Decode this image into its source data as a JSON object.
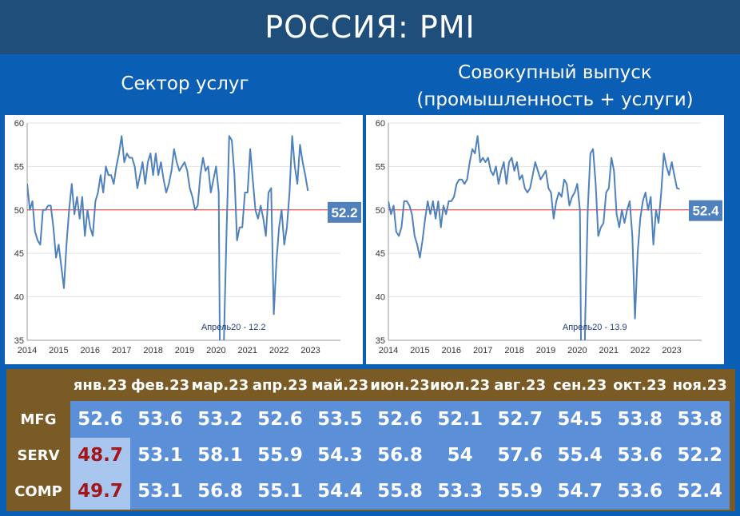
{
  "page": {
    "title": "РОССИЯ: PMI"
  },
  "subtitles": {
    "left": "Сектор услуг",
    "right_line1": "Совокупный выпуск",
    "right_line2": "(промышленность + услуги)"
  },
  "colors": {
    "line": "#4f81bd",
    "reference": "#e0302a",
    "badge": "#4f81bd",
    "highlight_text": "#a3161a"
  },
  "chart_data": [
    {
      "type": "line",
      "ylim": [
        35,
        60
      ],
      "xlim": [
        2014,
        2023.95
      ],
      "yticks": [
        35,
        40,
        45,
        50,
        55,
        60
      ],
      "xticks": [
        "2014",
        "2015",
        "2016",
        "2017",
        "2018",
        "2019",
        "2020",
        "2021",
        "2022",
        "2023"
      ],
      "reference_line": 50,
      "last_value_label": "52.2",
      "annotation": "Апрель20 - 12.2",
      "annotation_point": [
        2020.25,
        12.2
      ],
      "x_start": 2014,
      "x_step": 0.08333,
      "values": [
        53.0,
        50.0,
        51.0,
        47.5,
        46.5,
        46.0,
        50.0,
        50.0,
        50.5,
        50.5,
        48.0,
        44.5,
        46.0,
        43.5,
        41.0,
        46.0,
        50.0,
        53.0,
        49.5,
        51.5,
        49.0,
        51.5,
        47.0,
        50.0,
        48.0,
        47.0,
        51.0,
        52.0,
        54.0,
        52.0,
        55.0,
        54.0,
        54.0,
        53.0,
        55.0,
        56.5,
        58.5,
        55.5,
        56.5,
        56.0,
        56.0,
        55.0,
        52.5,
        54.0,
        55.5,
        53.0,
        55.5,
        56.5,
        54.0,
        56.5,
        54.0,
        55.5,
        53.5,
        52.0,
        53.0,
        54.5,
        57.0,
        55.5,
        54.5,
        55.0,
        55.5,
        54.5,
        52.5,
        51.5,
        50.0,
        50.5,
        54.0,
        56.0,
        54.5,
        55.0,
        52.0,
        53.5,
        55.0,
        52.0,
        12.2,
        35.0,
        47.5,
        58.5,
        58.0,
        54.0,
        46.5,
        48.0,
        48.0,
        52.0,
        52.0,
        57.0,
        53.5,
        50.0,
        49.0,
        50.5,
        49.0,
        47.0,
        52.0,
        52.5,
        38.0,
        44.0,
        48.0,
        50.0,
        46.0,
        48.0,
        52.0,
        58.5,
        55.0,
        53.0,
        57.5,
        55.5,
        54.0,
        52.2
      ]
    },
    {
      "type": "line",
      "ylim": [
        35,
        60
      ],
      "xlim": [
        2014,
        2023.95
      ],
      "yticks": [
        35,
        40,
        45,
        50,
        55,
        60
      ],
      "xticks": [
        "2014",
        "2015",
        "2016",
        "2017",
        "2018",
        "2019",
        "2020",
        "2021",
        "2022",
        "2023"
      ],
      "reference_line": 50,
      "last_value_label": "52.4",
      "annotation": "Апрель20 - 13.9",
      "annotation_point": [
        2020.25,
        13.9
      ],
      "x_start": 2014,
      "x_step": 0.08333,
      "values": [
        51.0,
        49.5,
        50.5,
        47.5,
        47.0,
        48.0,
        51.0,
        51.0,
        50.5,
        49.5,
        47.0,
        46.0,
        44.5,
        46.5,
        49.0,
        51.0,
        49.5,
        51.0,
        49.0,
        51.0,
        48.0,
        50.5,
        49.5,
        51.0,
        51.0,
        51.5,
        53.0,
        53.5,
        53.5,
        53.0,
        53.5,
        55.5,
        57.0,
        56.5,
        58.5,
        55.5,
        56.0,
        55.5,
        56.0,
        54.5,
        54.0,
        55.0,
        53.0,
        54.5,
        55.5,
        53.0,
        55.5,
        56.0,
        54.5,
        55.5,
        53.5,
        54.0,
        52.5,
        52.0,
        52.5,
        54.0,
        55.5,
        54.5,
        53.5,
        54.0,
        54.5,
        52.5,
        52.0,
        49.0,
        51.0,
        52.0,
        51.5,
        53.5,
        53.0,
        50.5,
        51.5,
        52.0,
        53.0,
        50.0,
        13.9,
        37.0,
        50.0,
        56.5,
        57.0,
        53.0,
        47.0,
        48.0,
        48.5,
        52.0,
        52.5,
        56.0,
        54.5,
        49.5,
        48.0,
        50.0,
        48.5,
        50.0,
        51.0,
        47.0,
        37.5,
        45.0,
        49.0,
        51.0,
        52.0,
        50.0,
        51.5,
        46.0,
        50.0,
        48.5,
        52.0,
        56.5,
        55.0,
        54.0,
        55.5,
        54.0,
        52.5,
        52.4
      ]
    }
  ],
  "table": {
    "headers": [
      "янв.23",
      "фев.23",
      "мар.23",
      "апр.23",
      "май.23",
      "июн.23",
      "июл.23",
      "авг.23",
      "сен.23",
      "окт.23",
      "ноя.23"
    ],
    "rows": [
      {
        "label": "MFG",
        "values": [
          "52.6",
          "53.6",
          "53.2",
          "52.6",
          "53.5",
          "52.6",
          "52.1",
          "52.7",
          "54.5",
          "53.8",
          "53.8"
        ]
      },
      {
        "label": "SERV",
        "values": [
          "48.7",
          "53.1",
          "58.1",
          "55.9",
          "54.3",
          "56.8",
          "54",
          "57.6",
          "55.4",
          "53.6",
          "52.2"
        ]
      },
      {
        "label": "COMP",
        "values": [
          "49.7",
          "53.1",
          "56.8",
          "55.1",
          "54.4",
          "55.8",
          "53.3",
          "55.9",
          "54.7",
          "53.6",
          "52.4"
        ]
      }
    ]
  }
}
